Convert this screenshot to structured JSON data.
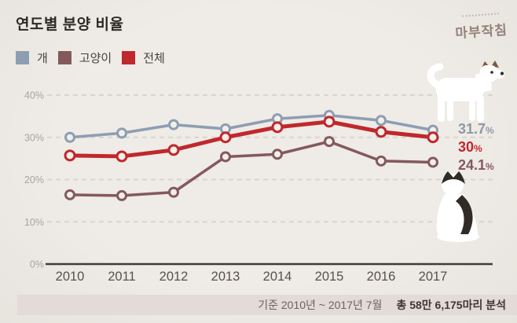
{
  "header": {
    "title": "연도별 분양 비율",
    "logo": "마부작침"
  },
  "legend": {
    "items": [
      {
        "label": "개",
        "color": "#8d9eb3"
      },
      {
        "label": "고양이",
        "color": "#84595c"
      },
      {
        "label": "전체",
        "color": "#bf282d"
      }
    ]
  },
  "chart_data": {
    "type": "line",
    "title": "연도별 분양 비율",
    "categories": [
      "2010",
      "2011",
      "2012",
      "2013",
      "2014",
      "2015",
      "2016",
      "2017"
    ],
    "series": [
      {
        "name": "개",
        "color": "#8d9eb3",
        "values": [
          30,
          31,
          33,
          32,
          34.4,
          35.2,
          34,
          31.7
        ],
        "end_label": "31.7",
        "end_label_color": "#8d99a6",
        "line_width": 3.5,
        "marker_radius": 5.5,
        "z": 2
      },
      {
        "name": "고양이",
        "color": "#84595c",
        "values": [
          16.4,
          16.2,
          17,
          25.4,
          26,
          29,
          24.4,
          24.1
        ],
        "end_label": "24.1",
        "end_label_color": "#84595c",
        "line_width": 3.5,
        "marker_radius": 5.5,
        "z": 1
      },
      {
        "name": "전체",
        "color": "#bf282d",
        "values": [
          25.7,
          25.5,
          27,
          30,
          32.4,
          33.7,
          31.3,
          30
        ],
        "end_label": "30",
        "end_label_color": "#bf282d",
        "line_width": 5,
        "marker_radius": 6,
        "z": 3
      }
    ],
    "xlabel": "",
    "ylabel": "",
    "ylim": [
      0,
      40
    ],
    "ytick_step": 10,
    "ytick_suffix": "%",
    "grid": "horizontal-dashed",
    "legend_position": "top-left",
    "end_label_suffix": "%"
  },
  "figures": {
    "dog": "white-jindo-dog-illustration",
    "cat": "white-and-black-cat-illustration"
  },
  "footer": {
    "basis": "기준 2010년 ~ 2017년 7월",
    "analysis": "총 58만 6,175마리 분석"
  },
  "colors": {
    "background": "#ece8e3",
    "footer_bar": "#e2dbd8",
    "grid": "#d8d4cd",
    "axis": "#3f3b38",
    "ytick_label": "#a9a49e",
    "year_label": "#56514c",
    "title": "#2c2925",
    "logo": "#93837a",
    "marker_fill": "#f2efe9"
  }
}
